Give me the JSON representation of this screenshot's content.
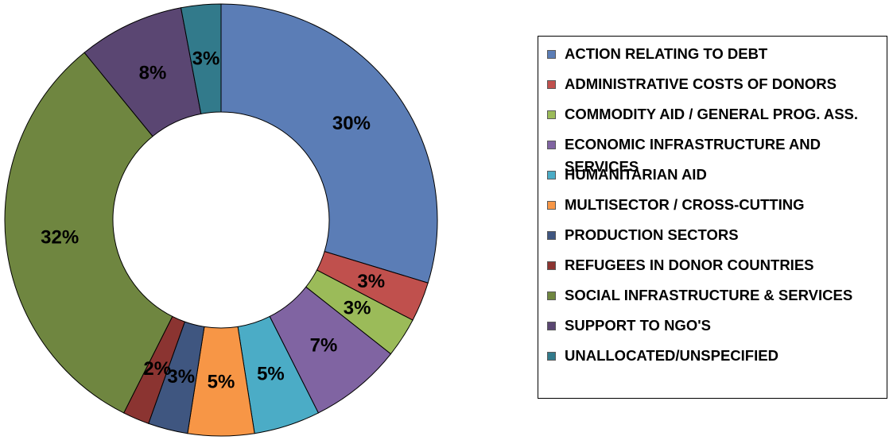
{
  "chart_data": {
    "type": "pie",
    "donut": true,
    "legend_position": "right",
    "slices": [
      {
        "name": "ACTION RELATING TO DEBT",
        "value": 30,
        "label": "30%",
        "color": "#5B7DB6"
      },
      {
        "name": "ADMINISTRATIVE COSTS OF DONORS",
        "value": 3,
        "label": "3%",
        "color": "#C0504D"
      },
      {
        "name": "COMMODITY AID / GENERAL PROG. ASS.",
        "value": 3,
        "label": "3%",
        "color": "#9BBB59"
      },
      {
        "name": "ECONOMIC INFRASTRUCTURE AND SERVICES",
        "value": 7,
        "label": "7%",
        "color": "#8064A2"
      },
      {
        "name": "HUMANITARIAN AID",
        "value": 5,
        "label": "5%",
        "color": "#4BACC6"
      },
      {
        "name": "MULTISECTOR / CROSS-CUTTING",
        "value": 5,
        "label": "5%",
        "color": "#F79646"
      },
      {
        "name": "PRODUCTION SECTORS",
        "value": 3,
        "label": "3%",
        "color": "#3F5680"
      },
      {
        "name": "REFUGEES IN DONOR COUNTRIES",
        "value": 2,
        "label": "2%",
        "color": "#8B3431"
      },
      {
        "name": "SOCIAL INFRASTRUCTURE & SERVICES",
        "value": 32,
        "label": "32%",
        "color": "#6F8640"
      },
      {
        "name": "SUPPORT TO NGO'S",
        "value": 8,
        "label": "8%",
        "color": "#5A4672"
      },
      {
        "name": "UNALLOCATED/UNSPECIFIED",
        "value": 3,
        "label": "3%",
        "color": "#327A8B"
      }
    ]
  }
}
